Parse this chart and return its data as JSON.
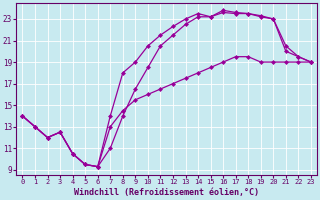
{
  "background_color": "#c8eaf0",
  "grid_color": "#ffffff",
  "line_color": "#990099",
  "marker": "D",
  "markersize": 2,
  "linewidth": 0.9,
  "xlabel": "Windchill (Refroidissement éolien,°C)",
  "xlabel_fontsize": 6,
  "xtick_fontsize": 5,
  "ytick_fontsize": 5.5,
  "xlim": [
    -0.5,
    23.5
  ],
  "ylim": [
    8.5,
    24.5
  ],
  "xticks": [
    0,
    1,
    2,
    3,
    4,
    5,
    6,
    7,
    8,
    9,
    10,
    11,
    12,
    13,
    14,
    15,
    16,
    17,
    18,
    19,
    20,
    21,
    22,
    23
  ],
  "yticks": [
    9,
    11,
    13,
    15,
    17,
    19,
    21,
    23
  ],
  "line1_x": [
    0,
    1,
    2,
    3,
    4,
    5,
    6,
    7,
    8,
    9,
    10,
    11,
    12,
    13,
    14,
    15,
    16,
    17,
    18,
    19,
    20,
    21,
    22,
    23
  ],
  "line1_y": [
    14.0,
    13.0,
    12.0,
    12.5,
    10.5,
    9.5,
    9.3,
    14.0,
    18.0,
    19.0,
    20.5,
    21.5,
    22.3,
    23.0,
    23.5,
    23.2,
    23.8,
    23.6,
    23.5,
    23.2,
    23.0,
    20.5,
    19.5,
    19.0
  ],
  "line2_x": [
    0,
    1,
    2,
    3,
    4,
    5,
    6,
    7,
    8,
    9,
    10,
    11,
    12,
    13,
    14,
    15,
    16,
    17,
    18,
    19,
    20,
    21,
    22,
    23
  ],
  "line2_y": [
    14.0,
    13.0,
    12.0,
    12.5,
    10.5,
    9.5,
    9.3,
    11.0,
    14.0,
    16.5,
    18.5,
    20.5,
    21.5,
    22.5,
    23.2,
    23.2,
    23.6,
    23.5,
    23.5,
    23.3,
    23.0,
    20.0,
    19.5,
    19.0
  ],
  "line3_x": [
    0,
    1,
    2,
    3,
    4,
    5,
    6,
    7,
    8,
    9,
    10,
    11,
    12,
    13,
    14,
    15,
    16,
    17,
    18,
    19,
    20,
    21,
    22,
    23
  ],
  "line3_y": [
    14.0,
    13.0,
    12.0,
    12.5,
    10.5,
    9.5,
    9.3,
    13.0,
    14.5,
    15.5,
    16.0,
    16.5,
    17.0,
    17.5,
    18.0,
    18.5,
    19.0,
    19.5,
    19.5,
    19.0,
    19.0,
    19.0,
    19.0,
    19.0
  ]
}
